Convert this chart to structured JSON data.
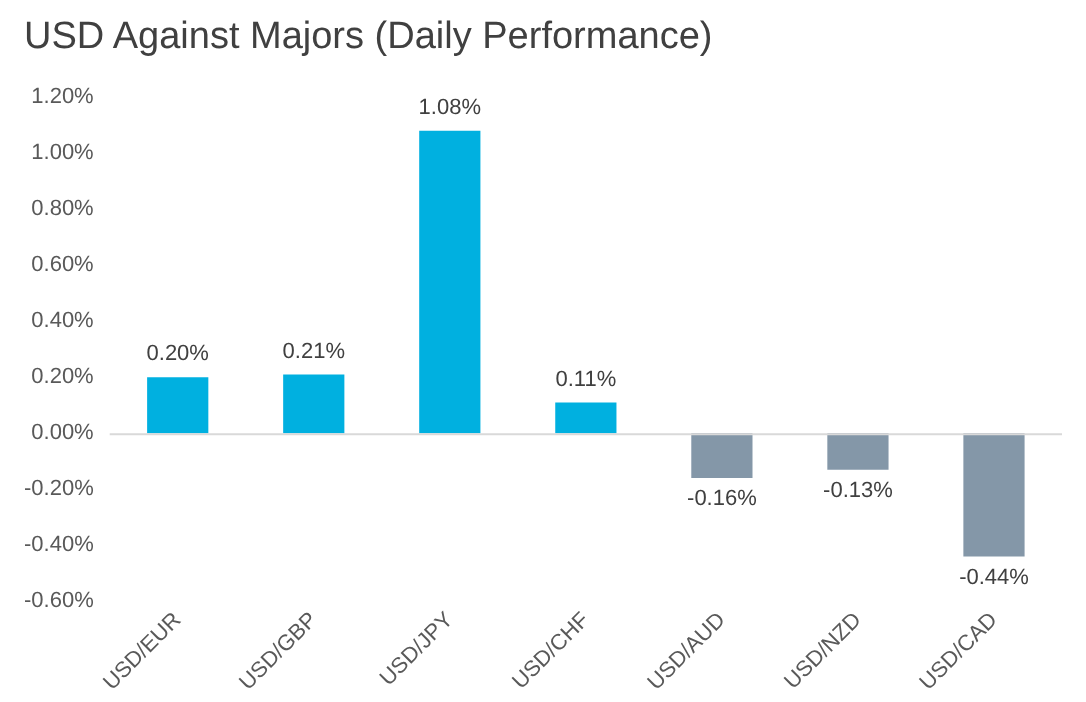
{
  "chart_data": {
    "type": "bar",
    "title": "USD Against Majors (Daily Performance)",
    "categories": [
      "USD/EUR",
      "USD/GBP",
      "USD/JPY",
      "USD/CHF",
      "USD/AUD",
      "USD/NZD",
      "USD/CAD"
    ],
    "values": [
      0.2,
      0.21,
      1.08,
      0.11,
      -0.16,
      -0.13,
      -0.44
    ],
    "colors": [
      "#00b0e0",
      "#00b0e0",
      "#00b0e0",
      "#00b0e0",
      "#8497a8",
      "#8497a8",
      "#8497a8"
    ],
    "value_labels": [
      "0.20%",
      "0.21%",
      "1.08%",
      "0.11%",
      "-0.16%",
      "-0.13%",
      "-0.44%"
    ],
    "ylim": [
      -0.6,
      1.2
    ],
    "yticks": [
      {
        "value": -0.6,
        "label": "-0.60%"
      },
      {
        "value": -0.4,
        "label": "-0.40%"
      },
      {
        "value": -0.2,
        "label": "-0.20%"
      },
      {
        "value": 0,
        "label": "0.00%"
      },
      {
        "value": 0.2,
        "label": "0.20%"
      },
      {
        "value": 0.4,
        "label": "0.40%"
      },
      {
        "value": 0.6,
        "label": "0.60%"
      },
      {
        "value": 0.8,
        "label": "0.80%"
      },
      {
        "value": 1,
        "label": "1.00%"
      },
      {
        "value": 1.2,
        "label": "1.20%"
      }
    ],
    "ref_lines": [
      {
        "axis": "y",
        "value": 0,
        "color": "#d9d9d9"
      }
    ],
    "grid": false,
    "legend": false
  }
}
